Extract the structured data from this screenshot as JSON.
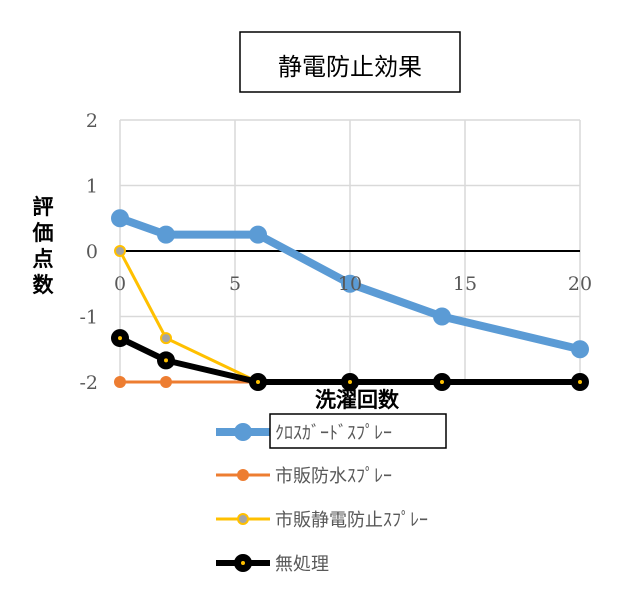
{
  "chart_data": {
    "type": "line",
    "title": "静電防止効果",
    "xlabel": "洗濯回数",
    "ylabel": "評価点数",
    "xlim": [
      0,
      20
    ],
    "ylim": [
      -2,
      2
    ],
    "x_ticks": [
      "0",
      "5",
      "10",
      "15",
      "20"
    ],
    "y_ticks": [
      "2",
      "1",
      "0",
      "-1",
      "-2"
    ],
    "grid": true,
    "legend_position": "bottom",
    "series": [
      {
        "name": "ｸﾛｽｶﾞｰﾄﾞｽﾌﾟﾚｰ",
        "color": "#5B9BD5",
        "points": [
          [
            0,
            0.5
          ],
          [
            2,
            0.25
          ],
          [
            6,
            0.25
          ],
          [
            10,
            -0.5
          ],
          [
            14,
            -1
          ],
          [
            20,
            -1.5
          ]
        ]
      },
      {
        "name": "市販防水ｽﾌﾟﾚｰ",
        "color": "#ED7D31",
        "points": [
          [
            0,
            -2
          ],
          [
            2,
            -2
          ],
          [
            6,
            -2
          ]
        ]
      },
      {
        "name": "市販静電防止ｽﾌﾟﾚｰ",
        "color": "#FFC000",
        "points": [
          [
            0,
            0
          ],
          [
            2,
            -1.33
          ],
          [
            6,
            -2
          ]
        ]
      },
      {
        "name": "無処理",
        "color": "#000000",
        "points": [
          [
            0,
            -1.33
          ],
          [
            2,
            -1.67
          ],
          [
            6,
            -2
          ],
          [
            10,
            -2
          ],
          [
            14,
            -2
          ],
          [
            20,
            -2
          ]
        ]
      }
    ]
  }
}
